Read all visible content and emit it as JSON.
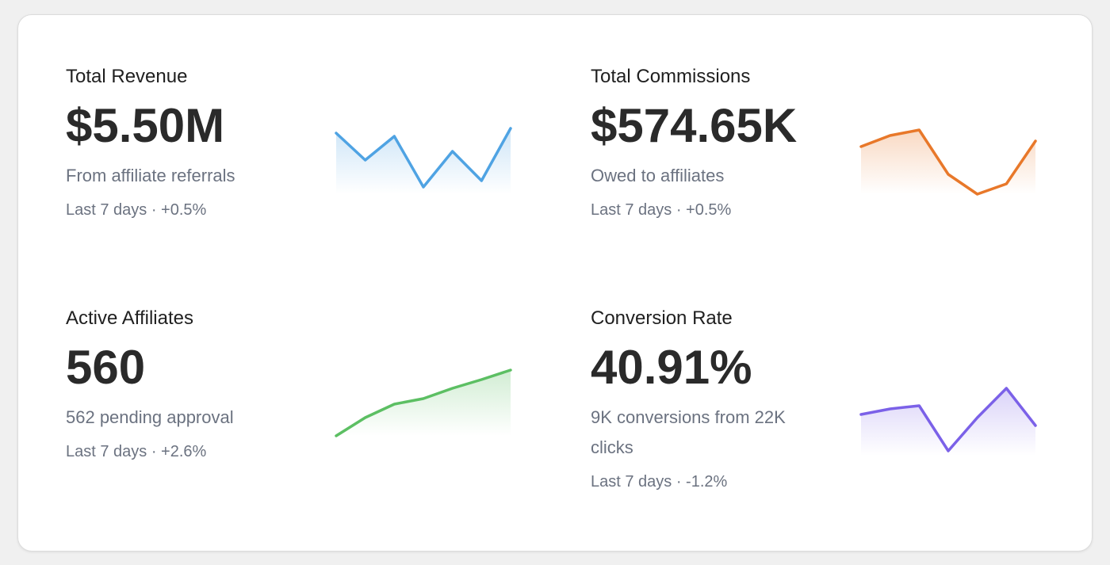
{
  "stats": [
    {
      "title": "Total Revenue",
      "value": "$5.50M",
      "subtitle": "From affiliate referrals",
      "meta": "Last 7 days · +0.5%"
    },
    {
      "title": "Total Commissions",
      "value": "$574.65K",
      "subtitle": "Owed to affiliates",
      "meta": "Last 7 days · +0.5%"
    },
    {
      "title": "Active Affiliates",
      "value": "560",
      "subtitle": "562 pending approval",
      "meta": "Last 7 days · +2.6%"
    },
    {
      "title": "Conversion Rate",
      "value": "40.91%",
      "subtitle": "9K conversions from 22K clicks",
      "meta": "Last 7 days · -1.2%"
    }
  ],
  "chart_data": [
    {
      "type": "area",
      "color": "#4fa3e3",
      "values": [
        77,
        43,
        73,
        9,
        54,
        17,
        83
      ]
    },
    {
      "type": "area",
      "color": "#e8782a",
      "values": [
        60,
        74,
        81,
        25,
        0,
        13,
        67
      ]
    },
    {
      "type": "area",
      "color": "#5cbf63",
      "values": [
        0,
        23,
        40,
        47,
        60,
        71,
        83
      ]
    },
    {
      "type": "area",
      "color": "#7b61e8",
      "values": [
        52,
        59,
        63,
        6,
        48,
        85,
        38
      ]
    }
  ]
}
